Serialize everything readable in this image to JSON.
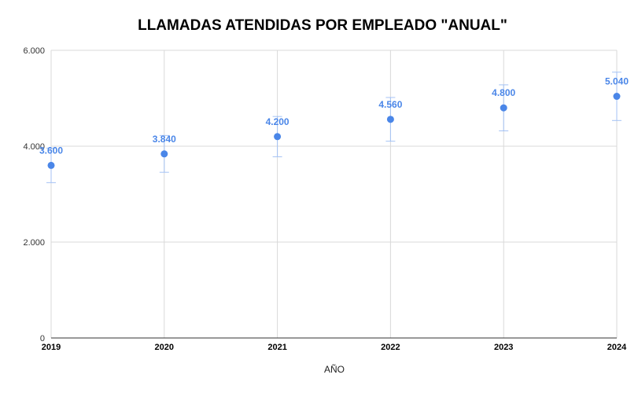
{
  "chart_data": {
    "type": "scatter",
    "title": "LLAMADAS ATENDIDAS POR EMPLEADO \"ANUAL\"",
    "xlabel": "AÑO",
    "ylabel": "",
    "categories": [
      "2019",
      "2020",
      "2021",
      "2022",
      "2023",
      "2024"
    ],
    "values": [
      3600,
      3840,
      4200,
      4560,
      4800,
      5040
    ],
    "value_labels": [
      "3.600",
      "3.840",
      "4.200",
      "4.560",
      "4.800",
      "5.040"
    ],
    "error_bars": {
      "lower": [
        3240,
        3456,
        3780,
        4104,
        4320,
        4536
      ],
      "upper": [
        3960,
        4224,
        4620,
        5016,
        5280,
        5544
      ]
    },
    "ylim": [
      0,
      6000
    ],
    "yticks": [
      0,
      2000,
      4000,
      6000
    ],
    "ytick_labels": [
      "0",
      "2.000",
      "4.000",
      "6.000"
    ],
    "grid": true,
    "legend": "none",
    "colors": {
      "point": "#4a86e8",
      "error_bar": "#a4c2f4",
      "label": "#4a86e8"
    }
  }
}
